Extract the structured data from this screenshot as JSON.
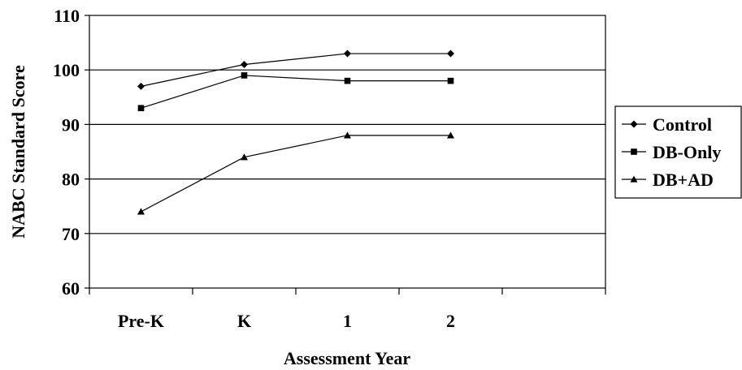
{
  "chart_data": {
    "type": "line",
    "title": "",
    "xlabel": "Assessment Year",
    "ylabel": "NABC Standard Score",
    "categories": [
      "Pre-K",
      "K",
      "1",
      "2"
    ],
    "ylim": [
      60,
      110
    ],
    "yticks": [
      60,
      70,
      80,
      90,
      100,
      110
    ],
    "grid": true,
    "legend_position": "right",
    "series": [
      {
        "name": "Control",
        "marker": "diamond",
        "values": [
          97,
          101,
          103,
          103
        ]
      },
      {
        "name": "DB-Only",
        "marker": "square",
        "values": [
          93,
          99,
          98,
          98
        ]
      },
      {
        "name": "DB+AD",
        "marker": "triangle",
        "values": [
          74,
          84,
          88,
          88
        ]
      }
    ]
  }
}
